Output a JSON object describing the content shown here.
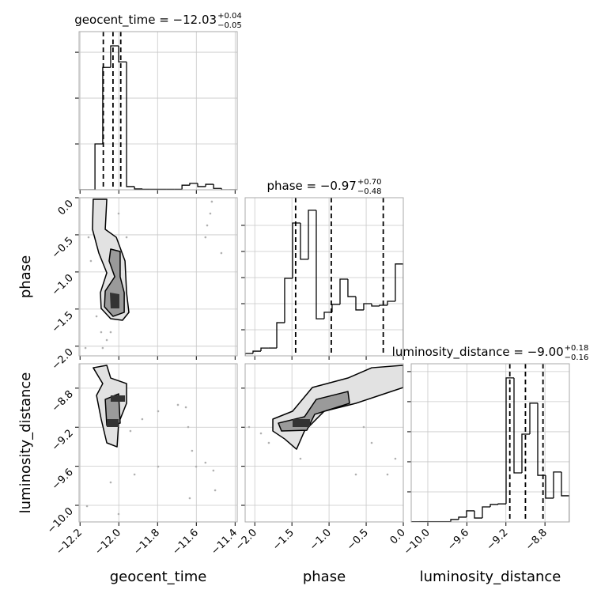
{
  "chart_data": [
    {
      "type": "histogram",
      "title": {
        "text": "geocent_time = −12.03",
        "plus": "+0.04",
        "minus": "−0.05"
      },
      "bins": [
        -12.205,
        -12.164,
        -12.123,
        -12.083,
        -12.042,
        -12.001,
        -11.96,
        -11.919,
        -11.878,
        -11.838,
        -11.797,
        -11.756,
        -11.715,
        -11.674,
        -11.634,
        -11.593,
        -11.552,
        -11.511,
        -11.47,
        -11.43,
        -11.389
      ],
      "counts": [
        0,
        0,
        1.0,
        2.67,
        3.14,
        2.79,
        0.07,
        0.02,
        0.01,
        0.01,
        0.01,
        0.01,
        0.01,
        0.1,
        0.14,
        0.07,
        0.12,
        0.03,
        0,
        0
      ],
      "quantiles": [
        -12.08,
        -12.03,
        -11.99
      ],
      "color": "#000000",
      "xlim": [
        -12.205,
        -11.389
      ],
      "xticks": [
        -12.2,
        -12.0,
        -11.8,
        -11.6,
        -11.4
      ],
      "ylim": [
        0,
        3.45
      ],
      "yticks": [
        1,
        2,
        3
      ],
      "grid": true
    },
    {
      "type": "contour",
      "ylabel": "phase",
      "xlim": [
        -12.205,
        -11.389
      ],
      "xticks": [
        -12.2,
        -12.0,
        -11.8,
        -11.6,
        -11.4
      ],
      "ylim": [
        -2.13,
        0.0
      ],
      "yticks": [
        {
          "value": 0.0,
          "label": "0.0"
        },
        {
          "value": -0.5,
          "label": "−0.5"
        },
        {
          "value": -1.0,
          "label": "−1.0"
        },
        {
          "value": -1.5,
          "label": "−1.5"
        },
        {
          "value": -2.0,
          "label": "−2.0"
        }
      ],
      "grid": true,
      "points": {
        "color": "#b0b0b0",
        "x": [
          -12.156,
          -12.144,
          -12.115,
          -12.091,
          -12.062,
          -12.083,
          -12.042,
          -12.172,
          -12.123,
          -12.001,
          -11.96,
          -11.52,
          -11.528,
          -11.544,
          -11.553,
          -11.471
        ],
        "y": [
          -0.533,
          -0.852,
          -1.598,
          -1.811,
          -1.917,
          -2.024,
          -1.811,
          -2.024,
          -0.107,
          -0.213,
          -0.533,
          -0.053,
          -0.213,
          -0.373,
          -0.533,
          -0.746
        ]
      },
      "contours": [
        {
          "fill": "#e2e2e2",
          "x": [
            -12.132,
            -12.062,
            -12.07,
            -12.013,
            -11.968,
            -11.96,
            -11.948,
            -11.981,
            -12.042,
            -12.091,
            -12.095,
            -12.062,
            -12.103,
            -12.136
          ],
          "y": [
            -0.021,
            -0.021,
            -0.426,
            -0.533,
            -0.852,
            -1.278,
            -1.544,
            -1.651,
            -1.629,
            -1.491,
            -1.278,
            -1.012,
            -0.746,
            -0.426
          ]
        },
        {
          "fill": "#9a9a9a",
          "x": [
            -12.042,
            -11.993,
            -11.993,
            -11.972,
            -11.972,
            -12.03,
            -12.074,
            -12.07,
            -12.021,
            -12.05
          ],
          "y": [
            -0.692,
            -0.724,
            -1.065,
            -1.278,
            -1.544,
            -1.598,
            -1.47,
            -1.257,
            -1.065,
            -0.852
          ]
        },
        {
          "fill": "#333333",
          "x": [
            -12.046,
            -11.997,
            -11.997,
            -12.042
          ],
          "y": [
            -1.278,
            -1.299,
            -1.491,
            -1.491
          ]
        }
      ]
    },
    {
      "type": "histogram",
      "title": {
        "text": "phase = −0.97",
        "plus": "+0.70",
        "minus": "−0.48"
      },
      "bins": [
        -2.13,
        -2.024,
        -1.917,
        -1.811,
        -1.704,
        -1.598,
        -1.491,
        -1.385,
        -1.278,
        -1.172,
        -1.065,
        -0.959,
        -0.852,
        -0.746,
        -0.639,
        -0.533,
        -0.426,
        -0.32,
        -0.213,
        -0.107,
        0.0
      ],
      "counts": [
        0.09,
        0.18,
        0.3,
        0.3,
        1.27,
        2.97,
        5.09,
        3.7,
        5.58,
        1.42,
        1.67,
        1.97,
        2.94,
        2.27,
        1.76,
        2.0,
        1.91,
        1.94,
        2.09,
        3.52
      ],
      "quantiles": [
        -1.45,
        -0.97,
        -0.27
      ],
      "color": "#000000",
      "xlim": [
        -2.13,
        0.0
      ],
      "xticks": [
        -2.0,
        -1.5,
        -1.0,
        -0.5,
        0.0
      ],
      "ylim": [
        0,
        6.06
      ],
      "yticks": [
        1,
        2,
        3,
        4,
        5
      ],
      "grid": true
    },
    {
      "type": "contour",
      "xlabel": "geocent_time",
      "ylabel": "luminosity_distance",
      "xlim": [
        -12.205,
        -11.389
      ],
      "xticks": [
        {
          "value": -12.2,
          "label": "−12.2"
        },
        {
          "value": -12.0,
          "label": "−12.0"
        },
        {
          "value": -11.8,
          "label": "−11.8"
        },
        {
          "value": -11.6,
          "label": "−11.6"
        },
        {
          "value": -11.4,
          "label": "−11.4"
        }
      ],
      "ylim": [
        -10.17,
        -8.55
      ],
      "yticks": [
        {
          "value": -8.8,
          "label": "−8.8"
        },
        {
          "value": -9.2,
          "label": "−9.2"
        },
        {
          "value": -9.6,
          "label": "−9.6"
        },
        {
          "value": -10.0,
          "label": "−10.0"
        }
      ],
      "grid": true,
      "points": {
        "color": "#b0b0b0",
        "x": [
          -11.94,
          -11.879,
          -11.797,
          -11.695,
          -11.654,
          -11.642,
          -11.622,
          -11.601,
          -11.553,
          -11.512,
          -11.503,
          -11.797,
          -11.919,
          -12.042,
          -12.164,
          -12.001,
          -11.634
        ],
        "y": [
          -9.239,
          -9.117,
          -9.036,
          -8.971,
          -8.996,
          -9.198,
          -9.441,
          -9.603,
          -9.563,
          -9.644,
          -9.846,
          -9.603,
          -9.684,
          -9.765,
          -10.008,
          -10.089,
          -9.927
        ]
      },
      "contours": [
        {
          "fill": "#e2e2e2",
          "x": [
            -12.132,
            -12.062,
            -12.042,
            -11.96,
            -11.96,
            -12.001,
            -12.009,
            -12.062,
            -12.091,
            -12.115,
            -12.083
          ],
          "y": [
            -8.591,
            -8.566,
            -8.696,
            -8.753,
            -8.955,
            -9.158,
            -9.401,
            -9.36,
            -9.117,
            -8.874,
            -8.753
          ]
        },
        {
          "fill": "#9a9a9a",
          "x": [
            -12.07,
            -12.001,
            -11.993,
            -12.062
          ],
          "y": [
            -8.915,
            -8.858,
            -9.158,
            -9.182
          ]
        },
        {
          "fill": "#333333",
          "x": [
            -12.042,
            -11.968,
            -11.968,
            -12.042
          ],
          "y": [
            -8.874,
            -8.874,
            -8.939,
            -8.939
          ]
        },
        {
          "fill": "#333333",
          "x": [
            -12.062,
            -12.001,
            -12.001,
            -12.062
          ],
          "y": [
            -9.117,
            -9.117,
            -9.198,
            -9.198
          ]
        }
      ]
    },
    {
      "type": "contour",
      "xlabel": "phase",
      "xlim": [
        -2.13,
        0.0
      ],
      "xticks": [
        {
          "value": -2.0,
          "label": "−2.0"
        },
        {
          "value": -1.5,
          "label": "−1.5"
        },
        {
          "value": -1.0,
          "label": "−1.0"
        },
        {
          "value": -0.5,
          "label": "−0.5"
        },
        {
          "value": 0.0,
          "label": "0.0"
        }
      ],
      "ylim": [
        -10.17,
        -8.55
      ],
      "yticks": [
        -8.8,
        -9.2,
        -9.6,
        -10.0
      ],
      "grid": true,
      "points": {
        "color": "#b0b0b0",
        "x": [
          -2.077,
          -1.917,
          -1.811,
          -0.959,
          -0.533,
          -0.426,
          -0.213,
          -0.107,
          -0.639,
          -1.385,
          -0.053
        ],
        "y": [
          -9.198,
          -9.263,
          -9.36,
          -8.793,
          -9.198,
          -9.36,
          -9.684,
          -9.522,
          -9.684,
          -9.522,
          -8.631
        ]
      },
      "contours": [
        {
          "fill": "#e2e2e2",
          "x": [
            -1.757,
            -1.491,
            -1.225,
            -0.746,
            -0.426,
            0.0,
            0.0,
            -0.32,
            -0.639,
            -1.065,
            -1.331,
            -1.438,
            -1.598,
            -1.757
          ],
          "y": [
            -9.117,
            -9.036,
            -8.793,
            -8.696,
            -8.591,
            -8.566,
            -8.793,
            -8.874,
            -8.955,
            -9.036,
            -9.239,
            -9.425,
            -9.32,
            -9.239
          ]
        },
        {
          "fill": "#9a9a9a",
          "x": [
            -1.683,
            -1.331,
            -1.172,
            -0.746,
            -0.724,
            -1.193,
            -1.299,
            -1.64
          ],
          "y": [
            -9.158,
            -9.093,
            -8.915,
            -8.834,
            -8.955,
            -9.068,
            -9.231,
            -9.239
          ]
        },
        {
          "fill": "#333333",
          "x": [
            -1.491,
            -1.257,
            -1.257,
            -1.491
          ],
          "y": [
            -9.117,
            -9.117,
            -9.198,
            -9.198
          ]
        }
      ]
    },
    {
      "type": "histogram",
      "title": {
        "text": "luminosity_distance = −9.00",
        "plus": "+0.18",
        "minus": "−0.16"
      },
      "xlabel": "luminosity_distance",
      "bins": [
        -10.17,
        -10.089,
        -10.008,
        -9.927,
        -9.846,
        -9.765,
        -9.684,
        -9.603,
        -9.522,
        -9.441,
        -9.36,
        -9.279,
        -9.198,
        -9.117,
        -9.036,
        -8.955,
        -8.874,
        -8.793,
        -8.712,
        -8.631,
        -8.55
      ],
      "counts": [
        0.01,
        0.01,
        0.01,
        0.01,
        0.01,
        0.08,
        0.16,
        0.37,
        0.13,
        0.5,
        0.58,
        0.6,
        4.79,
        1.63,
        2.92,
        3.95,
        1.55,
        0.79,
        1.66,
        0.87
      ],
      "quantiles": [
        -9.16,
        -9.0,
        -8.82
      ],
      "color": "#000000",
      "xlim": [
        -10.17,
        -8.55
      ],
      "xticks": [
        {
          "value": -10.0,
          "label": "−10.0"
        },
        {
          "value": -9.6,
          "label": "−9.6"
        },
        {
          "value": -9.2,
          "label": "−9.2"
        },
        {
          "value": -8.8,
          "label": "−8.8"
        }
      ],
      "ylim": [
        0,
        5.26
      ],
      "yticks": [
        1,
        2,
        3,
        4,
        5
      ],
      "grid": true
    }
  ]
}
